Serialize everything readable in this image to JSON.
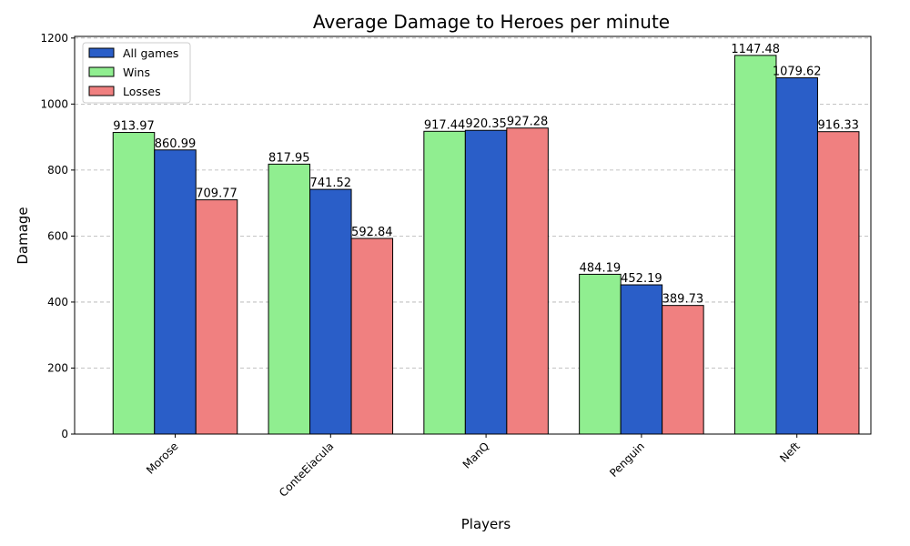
{
  "chart_data": {
    "type": "bar",
    "title": "Average Damage to Heroes per minute",
    "xlabel": "Players",
    "ylabel": "Damage",
    "categories": [
      "Morose",
      "ConteEiacula",
      "ManQ",
      "Penguin",
      "Neft"
    ],
    "series": [
      {
        "name": "Wins",
        "color": "#90ee90",
        "values": [
          913.97,
          817.95,
          917.44,
          484.19,
          1147.48
        ]
      },
      {
        "name": "All games",
        "color": "#2a5ec8",
        "values": [
          860.99,
          741.52,
          920.35,
          452.19,
          1079.62
        ]
      },
      {
        "name": "Losses",
        "color": "#f08080",
        "values": [
          709.77,
          592.84,
          927.28,
          389.73,
          916.33
        ]
      }
    ],
    "legend_order": [
      "All games",
      "Wins",
      "Losses"
    ],
    "legend_position": "top-left",
    "ylim": [
      0,
      1205
    ],
    "yticks": [
      0,
      200,
      400,
      600,
      800,
      1000,
      1200
    ],
    "grid": "y-dashed",
    "xtick_rotation": 45
  }
}
